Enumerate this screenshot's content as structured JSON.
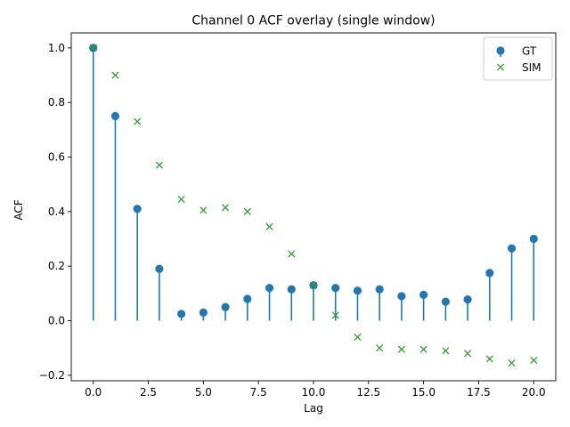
{
  "chart_data": {
    "type": "scatter",
    "title": "Channel 0 ACF overlay (single window)",
    "xlabel": "Lag",
    "ylabel": "ACF",
    "xlim": [
      -1,
      21
    ],
    "ylim": [
      -0.22,
      1.055
    ],
    "xticks": [
      0,
      2.5,
      5,
      7.5,
      10,
      12.5,
      15,
      17.5,
      20
    ],
    "xtick_labels": [
      "0.0",
      "2.5",
      "5.0",
      "7.5",
      "10.0",
      "12.5",
      "15.0",
      "17.5",
      "20.0"
    ],
    "yticks": [
      -0.2,
      0,
      0.2,
      0.4,
      0.6,
      0.8,
      1.0
    ],
    "ytick_labels": [
      "−0.2",
      "0.0",
      "0.2",
      "0.4",
      "0.6",
      "0.8",
      "1.0"
    ],
    "grid": false,
    "legend_position": "top-right",
    "x": [
      0,
      1,
      2,
      3,
      4,
      5,
      6,
      7,
      8,
      9,
      10,
      11,
      12,
      13,
      14,
      15,
      16,
      17,
      18,
      19,
      20
    ],
    "series": [
      {
        "name": "GT",
        "marker": "circle",
        "style": "stem",
        "color": "#1f77b4",
        "values": [
          1.0,
          0.75,
          0.41,
          0.19,
          0.025,
          0.03,
          0.05,
          0.08,
          0.12,
          0.115,
          0.13,
          0.12,
          0.11,
          0.115,
          0.09,
          0.095,
          0.07,
          0.078,
          0.175,
          0.265,
          0.3
        ]
      },
      {
        "name": "SIM",
        "marker": "x",
        "style": "markers",
        "color": "#2ca02c",
        "values": [
          1.0,
          0.9,
          0.73,
          0.57,
          0.445,
          0.405,
          0.415,
          0.4,
          0.345,
          0.245,
          0.13,
          0.02,
          -0.06,
          -0.1,
          -0.105,
          -0.105,
          -0.11,
          -0.12,
          -0.14,
          -0.155,
          -0.145
        ]
      }
    ]
  }
}
